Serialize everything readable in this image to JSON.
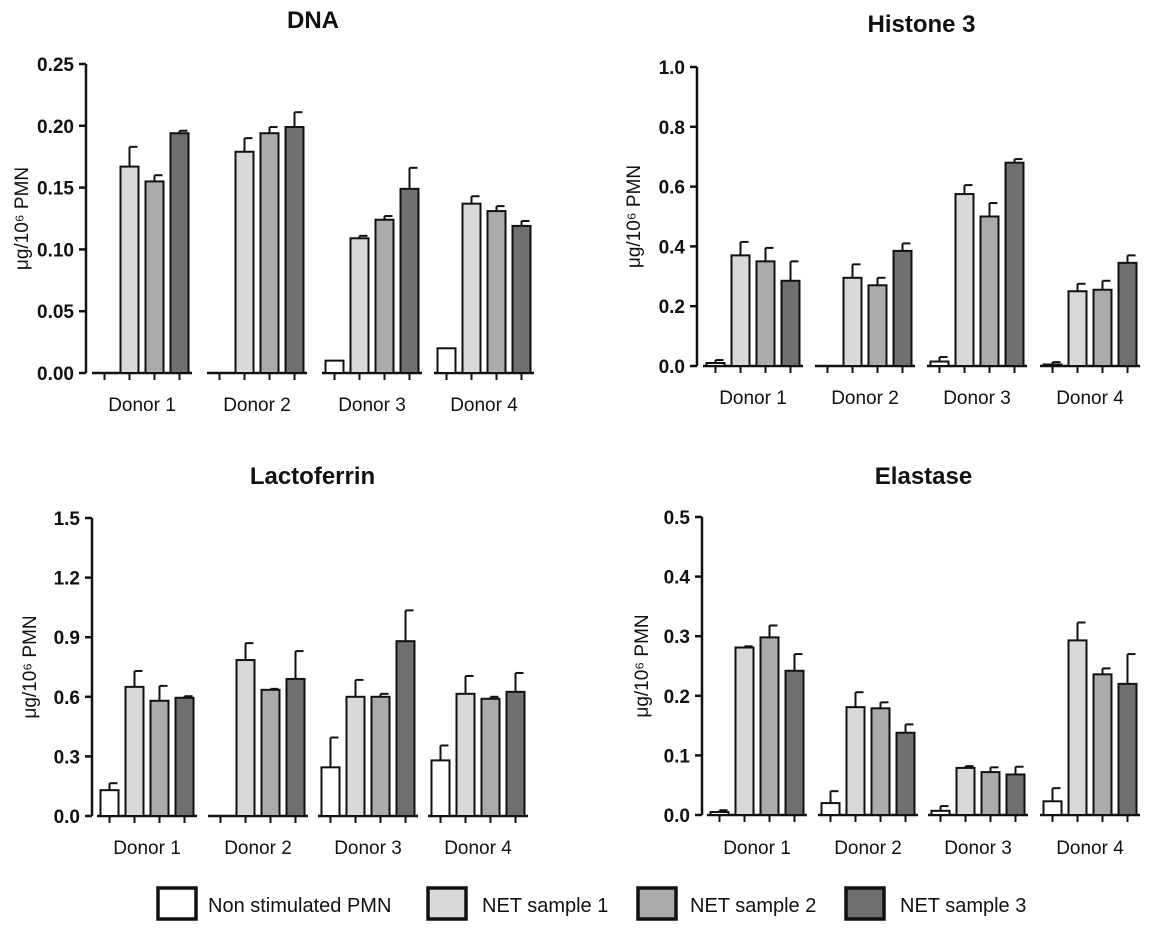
{
  "y_axis_label": "μg/10⁶ PMN",
  "colors": {
    "non_stimulated": "#ffffff",
    "net1": "#d9d9d9",
    "net2": "#ababab",
    "net3": "#6f6f6f",
    "stroke": "#111111"
  },
  "legend": [
    {
      "label": "Non stimulated PMN",
      "series": 0
    },
    {
      "label": "NET sample 1",
      "series": 1
    },
    {
      "label": "NET sample 2",
      "series": 2
    },
    {
      "label": "NET sample 3",
      "series": 3
    }
  ],
  "chart_data": [
    {
      "type": "bar",
      "title": "DNA",
      "ylabel": "μg/10⁶ PMN",
      "ylim": [
        0,
        0.25
      ],
      "ticks": [
        0.0,
        0.05,
        0.1,
        0.15,
        0.2,
        0.25
      ],
      "tick_labels": [
        "0.00",
        "0.05",
        "0.10",
        "0.15",
        "0.20",
        "0.25"
      ],
      "categories": [
        "Donor 1",
        "Donor 2",
        "Donor 3",
        "Donor 4"
      ],
      "series": [
        {
          "name": "Non stimulated PMN",
          "values": [
            0,
            0,
            0.01,
            0.02
          ],
          "errors": [
            0,
            0,
            0,
            0
          ]
        },
        {
          "name": "NET sample 1",
          "values": [
            0.167,
            0.179,
            0.109,
            0.137
          ],
          "errors": [
            0.016,
            0.011,
            0.002,
            0.006
          ]
        },
        {
          "name": "NET sample 2",
          "values": [
            0.155,
            0.194,
            0.124,
            0.131
          ],
          "errors": [
            0.005,
            0.005,
            0.003,
            0.004
          ]
        },
        {
          "name": "NET sample 3",
          "values": [
            0.194,
            0.199,
            0.149,
            0.119
          ],
          "errors": [
            0.002,
            0.012,
            0.017,
            0.004
          ]
        }
      ]
    },
    {
      "type": "bar",
      "title": "Histone 3",
      "ylabel": "μg/10⁶ PMN",
      "ylim": [
        0,
        1.0
      ],
      "ticks": [
        0,
        0.2,
        0.4,
        0.6,
        0.8,
        1.0
      ],
      "tick_labels": [
        "0.0",
        "0.2",
        "0.4",
        "0.6",
        "0.8",
        "1.0"
      ],
      "categories": [
        "Donor 1",
        "Donor 2",
        "Donor 3",
        "Donor 4"
      ],
      "series": [
        {
          "name": "Non stimulated PMN",
          "values": [
            0.01,
            0,
            0.015,
            0.005
          ],
          "errors": [
            0.01,
            0,
            0.015,
            0.008
          ]
        },
        {
          "name": "NET sample 1",
          "values": [
            0.37,
            0.295,
            0.575,
            0.25
          ],
          "errors": [
            0.045,
            0.045,
            0.03,
            0.025
          ]
        },
        {
          "name": "NET sample 2",
          "values": [
            0.35,
            0.27,
            0.5,
            0.255
          ],
          "errors": [
            0.045,
            0.025,
            0.045,
            0.03
          ]
        },
        {
          "name": "NET sample 3",
          "values": [
            0.285,
            0.385,
            0.68,
            0.345
          ],
          "errors": [
            0.065,
            0.025,
            0.012,
            0.025
          ]
        }
      ]
    },
    {
      "type": "bar",
      "title": "Lactoferrin",
      "ylabel": "μg/10⁶ PMN",
      "ylim": [
        0,
        1.5
      ],
      "ticks": [
        0,
        0.3,
        0.6,
        0.9,
        1.2,
        1.5
      ],
      "tick_labels": [
        "0.0",
        "0.3",
        "0.6",
        "0.9",
        "1.2",
        "1.5"
      ],
      "categories": [
        "Donor 1",
        "Donor 2",
        "Donor 3",
        "Donor 4"
      ],
      "series": [
        {
          "name": "Non stimulated PMN",
          "values": [
            0.13,
            0,
            0.245,
            0.28
          ],
          "errors": [
            0.035,
            0,
            0.15,
            0.075
          ]
        },
        {
          "name": "NET sample 1",
          "values": [
            0.65,
            0.785,
            0.6,
            0.615
          ],
          "errors": [
            0.08,
            0.085,
            0.085,
            0.09
          ]
        },
        {
          "name": "NET sample 2",
          "values": [
            0.58,
            0.635,
            0.6,
            0.59
          ],
          "errors": [
            0.075,
            0.005,
            0.015,
            0.01
          ]
        },
        {
          "name": "NET sample 3",
          "values": [
            0.595,
            0.69,
            0.88,
            0.625
          ],
          "errors": [
            0.008,
            0.14,
            0.155,
            0.095
          ]
        }
      ]
    },
    {
      "type": "bar",
      "title": "Elastase",
      "ylabel": "μg/10⁶ PMN",
      "ylim": [
        0,
        0.5
      ],
      "ticks": [
        0,
        0.1,
        0.2,
        0.3,
        0.4,
        0.5
      ],
      "tick_labels": [
        "0.0",
        "0.1",
        "0.2",
        "0.3",
        "0.4",
        "0.5"
      ],
      "categories": [
        "Donor 1",
        "Donor 2",
        "Donor 3",
        "Donor 4"
      ],
      "series": [
        {
          "name": "Non stimulated PMN",
          "values": [
            0.005,
            0.02,
            0.007,
            0.023
          ],
          "errors": [
            0.003,
            0.02,
            0.008,
            0.022
          ]
        },
        {
          "name": "NET sample 1",
          "values": [
            0.281,
            0.181,
            0.079,
            0.293
          ],
          "errors": [
            0.002,
            0.025,
            0.003,
            0.03
          ]
        },
        {
          "name": "NET sample 2",
          "values": [
            0.298,
            0.179,
            0.072,
            0.236
          ],
          "errors": [
            0.02,
            0.01,
            0.008,
            0.01
          ]
        },
        {
          "name": "NET sample 3",
          "values": [
            0.242,
            0.138,
            0.068,
            0.22
          ],
          "errors": [
            0.028,
            0.014,
            0.013,
            0.05
          ]
        }
      ]
    }
  ]
}
